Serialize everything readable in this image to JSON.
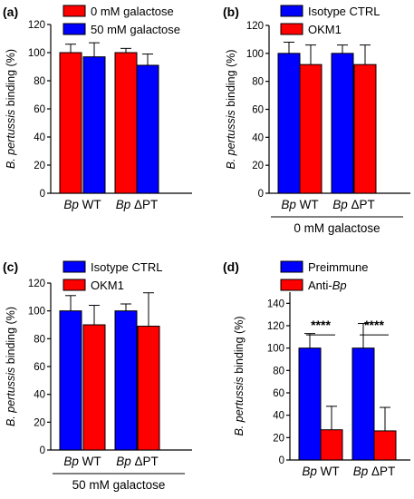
{
  "chart_data": [
    {
      "panel": "(a)",
      "type": "bar",
      "ylabel_italic": "B. pertussis",
      "ylabel_rest": " binding (%)",
      "ylim": [
        0,
        120
      ],
      "yticks": [
        0,
        20,
        40,
        60,
        80,
        100,
        120
      ],
      "categories": [
        {
          "italic": "Bp",
          "rest": " WT"
        },
        {
          "italic": "Bp",
          "rest": " ΔPT"
        }
      ],
      "series": [
        {
          "name": "0 mM galactose",
          "color": "#ff0000",
          "values": [
            100,
            100
          ],
          "errors": [
            6,
            3
          ]
        },
        {
          "name": "50 mM galactose",
          "color": "#0000ff",
          "values": [
            97,
            91
          ],
          "errors": [
            10,
            8
          ]
        }
      ],
      "footer": "",
      "significance": []
    },
    {
      "panel": "(b)",
      "type": "bar",
      "ylabel_italic": "B. pertussis",
      "ylabel_rest": " binding (%)",
      "ylim": [
        0,
        120
      ],
      "yticks": [
        0,
        20,
        40,
        60,
        80,
        100,
        120
      ],
      "categories": [
        {
          "italic": "Bp",
          "rest": " WT"
        },
        {
          "italic": "Bp",
          "rest": " ΔPT"
        }
      ],
      "series": [
        {
          "name": "Isotype CTRL",
          "color": "#0000ff",
          "values": [
            100,
            100
          ],
          "errors": [
            8,
            6
          ]
        },
        {
          "name": "OKM1",
          "color": "#ff0000",
          "values": [
            92,
            92
          ],
          "errors": [
            14,
            14
          ]
        }
      ],
      "footer": "0 mM galactose",
      "significance": []
    },
    {
      "panel": "(c)",
      "type": "bar",
      "ylabel_italic": "B. pertussis",
      "ylabel_rest": " binding (%)",
      "ylim": [
        0,
        120
      ],
      "yticks": [
        0,
        20,
        40,
        60,
        80,
        100,
        120
      ],
      "categories": [
        {
          "italic": "Bp",
          "rest": " WT"
        },
        {
          "italic": "Bp",
          "rest": " ΔPT"
        }
      ],
      "series": [
        {
          "name": "Isotype CTRL",
          "color": "#0000ff",
          "values": [
            100,
            100
          ],
          "errors": [
            11,
            5
          ]
        },
        {
          "name": "OKM1",
          "color": "#ff0000",
          "values": [
            90,
            89
          ],
          "errors": [
            14,
            24
          ]
        }
      ],
      "footer": "50 mM galactose",
      "significance": []
    },
    {
      "panel": "(d)",
      "type": "bar",
      "ylabel_italic": "B. pertussis",
      "ylabel_rest": " binding (%)",
      "ylim": [
        0,
        150
      ],
      "yticks": [
        0,
        20,
        40,
        60,
        80,
        100,
        120,
        140
      ],
      "categories": [
        {
          "italic": "Bp",
          "rest": " WT"
        },
        {
          "italic": "Bp",
          "rest": " ΔPT"
        }
      ],
      "series": [
        {
          "name": "Preimmune",
          "color": "#0000ff",
          "values": [
            100,
            100
          ],
          "errors": [
            13,
            22
          ]
        },
        {
          "name": "Anti-Bp",
          "name_plain": "Anti-",
          "name_italic": "Bp",
          "color": "#ff0000",
          "values": [
            27,
            26
          ],
          "errors": [
            21,
            21
          ]
        }
      ],
      "footer": "",
      "significance": [
        "****",
        "****"
      ]
    }
  ]
}
